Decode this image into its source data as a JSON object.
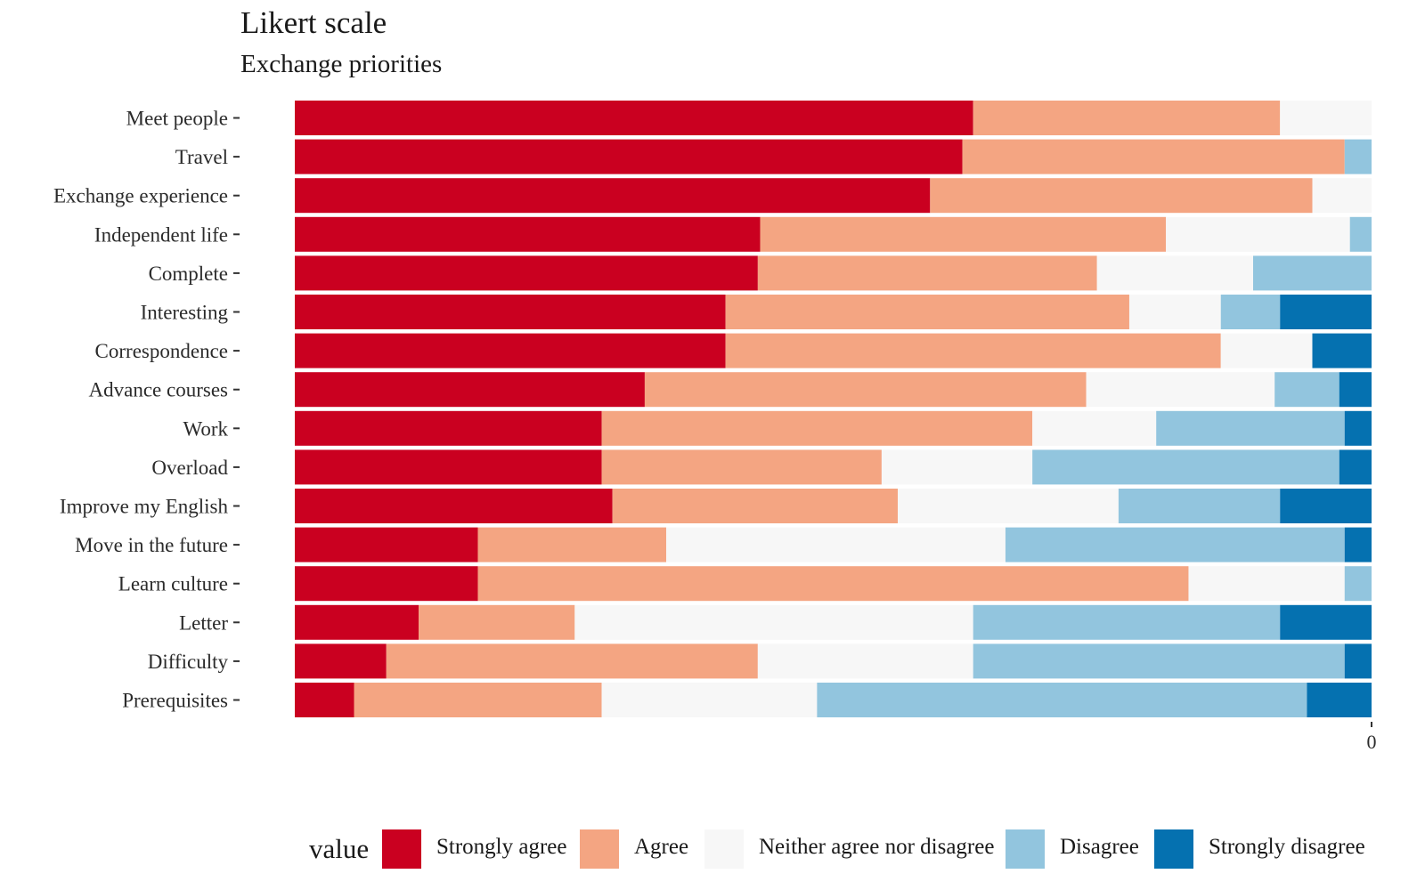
{
  "chart_data": {
    "type": "bar",
    "orientation": "horizontal",
    "stacked": true,
    "title": "Likert scale",
    "subtitle": "Exchange priorities",
    "xlabel": "",
    "ylabel": "",
    "x_tick_labels": [
      "0"
    ],
    "legend": {
      "title": "value",
      "placement": "bottom"
    },
    "categories": [
      "Meet people",
      "Travel",
      "Exchange experience",
      "Independent life",
      "Complete",
      "Interesting",
      "Correspondence",
      "Advance courses",
      "Work",
      "Overload",
      "Improve my English",
      "Move in the future",
      "Learn culture",
      "Letter",
      "Difficulty",
      "Prerequisites"
    ],
    "series": [
      {
        "name": "Strongly agree",
        "color": "#CA0020",
        "values": [
          63,
          62,
          59,
          43,
          43,
          40,
          40,
          32.5,
          28.5,
          28.5,
          29.5,
          17,
          17,
          11.5,
          8.5,
          5.5
        ]
      },
      {
        "name": "Agree",
        "color": "#F4A582",
        "values": [
          28.5,
          35.5,
          35.5,
          37.5,
          31.5,
          37.5,
          46,
          41,
          40,
          26,
          26.5,
          17.5,
          66,
          14.5,
          34.5,
          23
        ]
      },
      {
        "name": "Neither agree nor disagree",
        "color": "#F7F7F7",
        "values": [
          8.5,
          0,
          5.5,
          17,
          14.5,
          8.5,
          8.5,
          17.5,
          11.5,
          14,
          20.5,
          31.5,
          14.5,
          37,
          20,
          20
        ]
      },
      {
        "name": "Disagree",
        "color": "#92C5DE",
        "values": [
          0,
          2.5,
          0,
          2,
          11,
          5.5,
          0,
          6,
          17.5,
          28.5,
          15,
          31.5,
          2.5,
          28.5,
          34.5,
          45.5
        ]
      },
      {
        "name": "Strongly disagree",
        "color": "#0571B0",
        "values": [
          0,
          0,
          0,
          0,
          0,
          8.5,
          5.5,
          3,
          2.5,
          3,
          8.5,
          2.5,
          0,
          8.5,
          2.5,
          6
        ]
      }
    ]
  }
}
